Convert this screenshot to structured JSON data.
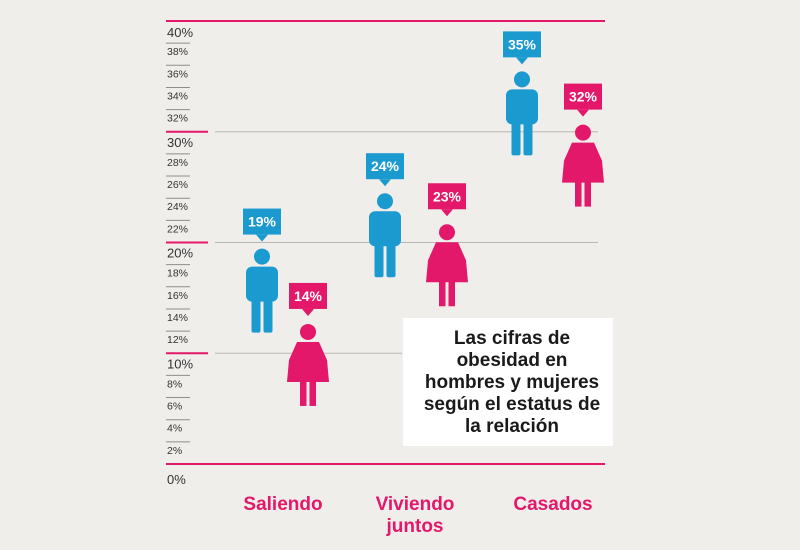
{
  "chart_data": {
    "type": "pictogram",
    "title_lines": [
      "Las cifras de",
      "obesidad en",
      "hombres y mujeres",
      "según el estatus de",
      "la relación"
    ],
    "categories": [
      [
        "Saliendo"
      ],
      [
        "Viviendo",
        "juntos"
      ],
      [
        "Casados"
      ]
    ],
    "series": [
      {
        "name": "Hombres",
        "color": "#1b9ad0",
        "values": [
          19,
          24,
          35
        ],
        "labels": [
          "19%",
          "24%",
          "35%"
        ]
      },
      {
        "name": "Mujeres",
        "color": "#e4186a",
        "values": [
          14,
          23,
          32
        ],
        "labels": [
          "14%",
          "23%",
          "32%"
        ]
      }
    ],
    "ylim": [
      0,
      40
    ],
    "major_ticks": [
      "0%",
      "10%",
      "20%",
      "30%",
      "40%"
    ],
    "minor_ticks": [
      "2%",
      "4%",
      "6%",
      "8%",
      "12%",
      "14%",
      "16%",
      "18%",
      "22%",
      "24%",
      "26%",
      "28%",
      "32%",
      "34%",
      "36%",
      "38%"
    ],
    "colors": {
      "accent_line": "#e4186a",
      "grid": "#b9b7b2",
      "background": "#efeeeb"
    }
  }
}
